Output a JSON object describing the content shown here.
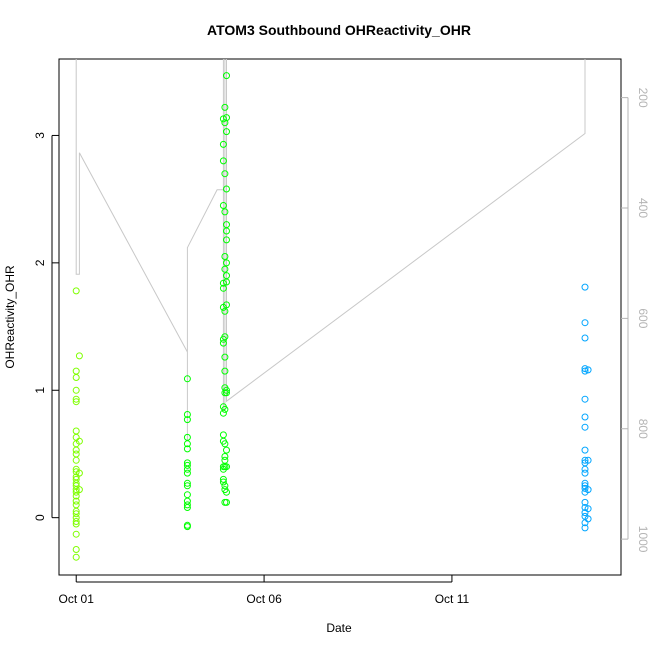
{
  "chart_data": {
    "type": "scatter",
    "title": "ATOM3 Southbound OHReactivity_OHR",
    "xlabel": "Date",
    "ylabel": "OHReactivity_OHR",
    "x_axis": {
      "type": "date",
      "range": [
        "2016-09-30T13:00",
        "2016-10-15T12:00"
      ],
      "ticks": [
        {
          "value": "2016-10-01T00:00",
          "label": "Oct 01"
        },
        {
          "value": "2016-10-06T00:00",
          "label": "Oct 06"
        },
        {
          "value": "2016-10-11T00:00",
          "label": "Oct 11"
        }
      ]
    },
    "y_axis": {
      "range": [
        -0.45,
        3.6
      ],
      "ticks": [
        0,
        1,
        2,
        3
      ],
      "tick_labels": [
        "0",
        "1",
        "2",
        "3"
      ]
    },
    "y2_axis": {
      "range": [
        1065,
        130
      ],
      "reversed": true,
      "ticks": [
        200,
        400,
        600,
        800,
        1000
      ],
      "tick_labels": [
        "200",
        "400",
        "600",
        "800",
        "1000"
      ],
      "color": "#b4b4b4"
    },
    "grid": false,
    "legend": "none",
    "series": [
      {
        "color": "#7fff00",
        "points": [
          [
            "2016-10-01T00:00",
            1.78
          ],
          [
            "2016-10-01T00:00",
            1.15
          ],
          [
            "2016-10-01T00:00",
            1.1
          ],
          [
            "2016-10-01T00:00",
            1.0
          ],
          [
            "2016-10-01T00:00",
            0.93
          ],
          [
            "2016-10-01T00:00",
            0.91
          ],
          [
            "2016-10-01T00:00",
            0.68
          ],
          [
            "2016-10-01T00:00",
            0.63
          ],
          [
            "2016-10-01T00:00",
            0.58
          ],
          [
            "2016-10-01T00:00",
            0.53
          ],
          [
            "2016-10-01T00:00",
            0.5
          ],
          [
            "2016-10-01T00:00",
            0.45
          ],
          [
            "2016-10-01T00:00",
            0.38
          ],
          [
            "2016-10-01T00:00",
            0.36
          ],
          [
            "2016-10-01T00:00",
            0.32
          ],
          [
            "2016-10-01T00:00",
            0.3
          ],
          [
            "2016-10-01T00:00",
            0.27
          ],
          [
            "2016-10-01T00:00",
            0.25
          ],
          [
            "2016-10-01T00:00",
            0.22
          ],
          [
            "2016-10-01T00:00",
            0.2
          ],
          [
            "2016-10-01T00:00",
            0.17
          ],
          [
            "2016-10-01T00:00",
            0.13
          ],
          [
            "2016-10-01T00:00",
            0.1
          ],
          [
            "2016-10-01T00:00",
            0.05
          ],
          [
            "2016-10-01T00:00",
            0.03
          ],
          [
            "2016-10-01T00:00",
            0.0
          ],
          [
            "2016-10-01T00:00",
            -0.03
          ],
          [
            "2016-10-01T00:00",
            -0.05
          ],
          [
            "2016-10-01T00:00",
            -0.13
          ],
          [
            "2016-10-01T00:00",
            -0.25
          ],
          [
            "2016-10-01T00:00",
            -0.31
          ],
          [
            "2016-10-01T02:00",
            1.27
          ],
          [
            "2016-10-01T02:00",
            0.6
          ],
          [
            "2016-10-01T02:00",
            0.35
          ],
          [
            "2016-10-01T02:00",
            0.22
          ]
        ]
      },
      {
        "color": "#00ff00",
        "points": [
          [
            "2016-10-03T23:00",
            1.09
          ],
          [
            "2016-10-03T23:00",
            0.81
          ],
          [
            "2016-10-03T23:00",
            0.77
          ],
          [
            "2016-10-03T23:00",
            0.63
          ],
          [
            "2016-10-03T23:00",
            0.58
          ],
          [
            "2016-10-03T23:00",
            0.54
          ],
          [
            "2016-10-03T23:00",
            0.43
          ],
          [
            "2016-10-03T23:00",
            0.41
          ],
          [
            "2016-10-03T23:00",
            0.38
          ],
          [
            "2016-10-03T23:00",
            0.35
          ],
          [
            "2016-10-03T23:00",
            0.27
          ],
          [
            "2016-10-03T23:00",
            0.25
          ],
          [
            "2016-10-03T23:00",
            0.18
          ],
          [
            "2016-10-03T23:00",
            0.13
          ],
          [
            "2016-10-03T23:00",
            0.1
          ],
          [
            "2016-10-03T23:00",
            0.08
          ],
          [
            "2016-10-03T23:00",
            -0.06
          ],
          [
            "2016-10-03T23:00",
            -0.07
          ],
          [
            "2016-10-04T22:00",
            3.13
          ],
          [
            "2016-10-04T22:00",
            2.93
          ],
          [
            "2016-10-04T22:00",
            2.8
          ],
          [
            "2016-10-04T22:00",
            2.45
          ],
          [
            "2016-10-04T22:00",
            1.84
          ],
          [
            "2016-10-04T22:00",
            1.8
          ],
          [
            "2016-10-04T22:00",
            1.65
          ],
          [
            "2016-10-04T22:00",
            1.4
          ],
          [
            "2016-10-04T22:00",
            1.37
          ],
          [
            "2016-10-04T22:00",
            0.87
          ],
          [
            "2016-10-04T22:00",
            0.82
          ],
          [
            "2016-10-04T22:00",
            0.65
          ],
          [
            "2016-10-04T22:00",
            0.6
          ],
          [
            "2016-10-04T22:00",
            0.4
          ],
          [
            "2016-10-04T22:00",
            0.38
          ],
          [
            "2016-10-04T22:00",
            0.3
          ],
          [
            "2016-10-04T22:00",
            0.28
          ],
          [
            "2016-10-04T23:00",
            3.22
          ],
          [
            "2016-10-04T23:00",
            3.1
          ],
          [
            "2016-10-04T23:00",
            2.7
          ],
          [
            "2016-10-04T23:00",
            2.4
          ],
          [
            "2016-10-04T23:00",
            2.05
          ],
          [
            "2016-10-04T23:00",
            1.95
          ],
          [
            "2016-10-04T23:00",
            1.62
          ],
          [
            "2016-10-04T23:00",
            1.42
          ],
          [
            "2016-10-04T23:00",
            1.26
          ],
          [
            "2016-10-04T23:00",
            1.15
          ],
          [
            "2016-10-04T23:00",
            1.02
          ],
          [
            "2016-10-04T23:00",
            0.98
          ],
          [
            "2016-10-04T23:00",
            0.85
          ],
          [
            "2016-10-04T23:00",
            0.58
          ],
          [
            "2016-10-04T23:00",
            0.48
          ],
          [
            "2016-10-04T23:00",
            0.45
          ],
          [
            "2016-10-04T23:00",
            0.4
          ],
          [
            "2016-10-04T23:00",
            0.25
          ],
          [
            "2016-10-04T23:00",
            0.22
          ],
          [
            "2016-10-04T23:00",
            0.12
          ],
          [
            "2016-10-05T00:00",
            3.47
          ],
          [
            "2016-10-05T00:00",
            3.14
          ],
          [
            "2016-10-05T00:00",
            3.03
          ],
          [
            "2016-10-05T00:00",
            2.58
          ],
          [
            "2016-10-05T00:00",
            2.3
          ],
          [
            "2016-10-05T00:00",
            2.25
          ],
          [
            "2016-10-05T00:00",
            2.18
          ],
          [
            "2016-10-05T00:00",
            2.0
          ],
          [
            "2016-10-05T00:00",
            1.9
          ],
          [
            "2016-10-05T00:00",
            1.85
          ],
          [
            "2016-10-05T00:00",
            1.67
          ],
          [
            "2016-10-05T00:00",
            1.0
          ],
          [
            "2016-10-05T00:00",
            0.98
          ],
          [
            "2016-10-05T00:00",
            0.53
          ],
          [
            "2016-10-05T00:00",
            0.4
          ],
          [
            "2016-10-05T00:00",
            0.2
          ],
          [
            "2016-10-05T00:00",
            0.12
          ]
        ]
      },
      {
        "color": "#00a5ff",
        "points": [
          [
            "2016-10-14T13:00",
            1.81
          ],
          [
            "2016-10-14T13:00",
            1.53
          ],
          [
            "2016-10-14T13:00",
            1.41
          ],
          [
            "2016-10-14T13:00",
            1.17
          ],
          [
            "2016-10-14T13:00",
            1.15
          ],
          [
            "2016-10-14T13:00",
            0.93
          ],
          [
            "2016-10-14T13:00",
            0.79
          ],
          [
            "2016-10-14T13:00",
            0.71
          ],
          [
            "2016-10-14T13:00",
            0.53
          ],
          [
            "2016-10-14T13:00",
            0.45
          ],
          [
            "2016-10-14T13:00",
            0.43
          ],
          [
            "2016-10-14T13:00",
            0.38
          ],
          [
            "2016-10-14T13:00",
            0.35
          ],
          [
            "2016-10-14T13:00",
            0.27
          ],
          [
            "2016-10-14T13:00",
            0.25
          ],
          [
            "2016-10-14T13:00",
            0.23
          ],
          [
            "2016-10-14T13:00",
            0.2
          ],
          [
            "2016-10-14T13:00",
            0.12
          ],
          [
            "2016-10-14T13:00",
            0.08
          ],
          [
            "2016-10-14T13:00",
            0.04
          ],
          [
            "2016-10-14T13:00",
            0.01
          ],
          [
            "2016-10-14T13:00",
            -0.04
          ],
          [
            "2016-10-14T13:00",
            -0.08
          ],
          [
            "2016-10-14T15:00",
            1.16
          ],
          [
            "2016-10-14T15:00",
            0.45
          ],
          [
            "2016-10-14T15:00",
            0.22
          ],
          [
            "2016-10-14T15:00",
            0.07
          ],
          [
            "2016-10-14T15:00",
            -0.01
          ]
        ]
      }
    ],
    "line_series": {
      "axis": "right",
      "color": "#c8c8c8",
      "points": [
        [
          "2016-10-01T00:00",
          10
        ],
        [
          "2016-10-01T00:00",
          520
        ],
        [
          "2016-10-01T02:00",
          520
        ],
        [
          "2016-10-01T02:00",
          300
        ],
        [
          "2016-10-03T23:00",
          661
        ],
        [
          "2016-10-03T23:00",
          822
        ],
        [
          "2016-10-03T23:00",
          472
        ],
        [
          "2016-10-04T18:00",
          367
        ],
        [
          "2016-10-04T22:00",
          367
        ],
        [
          "2016-10-04T22:00",
          10
        ],
        [
          "2016-10-04T22:00",
          764
        ],
        [
          "2016-10-04T23:00",
          764
        ],
        [
          "2016-10-04T23:00",
          10
        ],
        [
          "2016-10-05T00:00",
          10
        ],
        [
          "2016-10-05T00:00",
          750
        ],
        [
          "2016-10-14T13:00",
          265
        ],
        [
          "2016-10-14T13:00",
          10
        ]
      ]
    }
  }
}
